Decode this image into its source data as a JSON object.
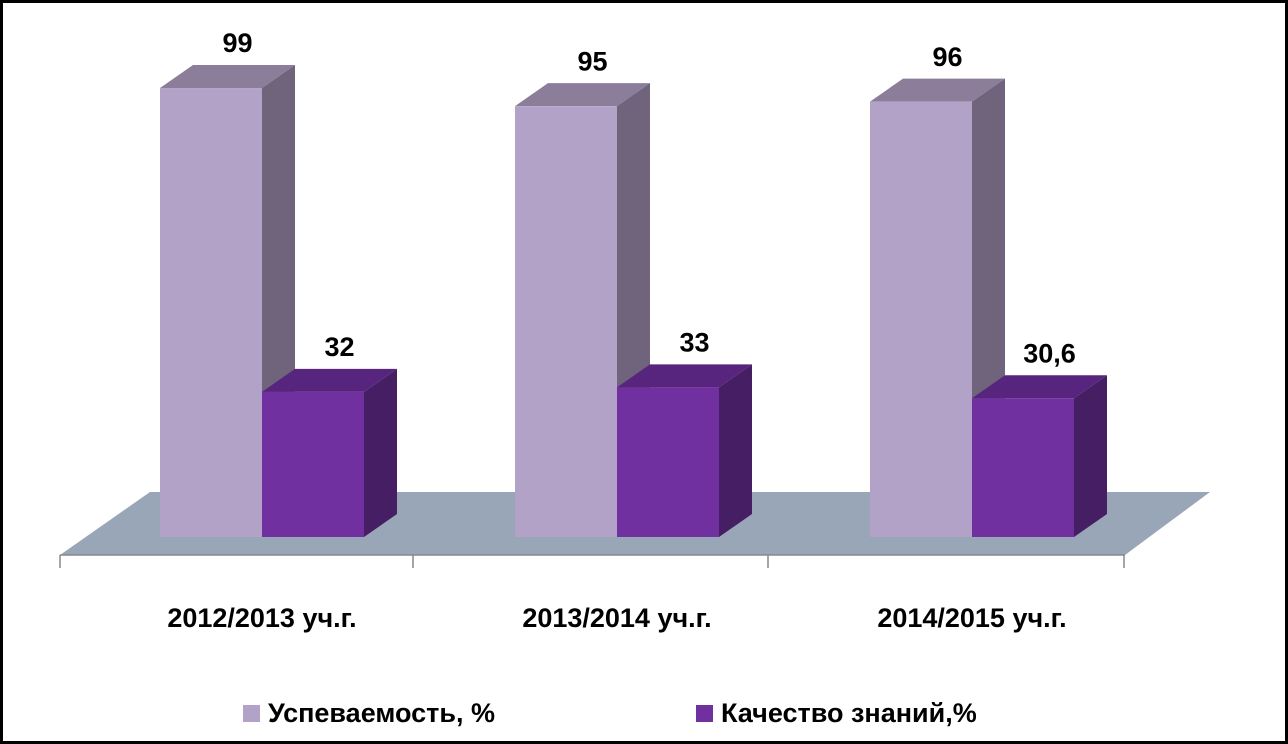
{
  "chart_data": {
    "type": "bar3d",
    "categories": [
      "2012/2013 уч.г.",
      "2013/2014 уч.г.",
      "2014/2015 уч.г."
    ],
    "series": [
      {
        "name": "Успеваемость, %",
        "color": "#b3a2c7",
        "values": [
          99,
          95,
          96
        ]
      },
      {
        "name": "Качество знаний,%",
        "color": "#7030a0",
        "values": [
          32,
          33,
          30.6
        ],
        "value_labels": [
          "32",
          "33",
          "30,6"
        ]
      }
    ]
  }
}
